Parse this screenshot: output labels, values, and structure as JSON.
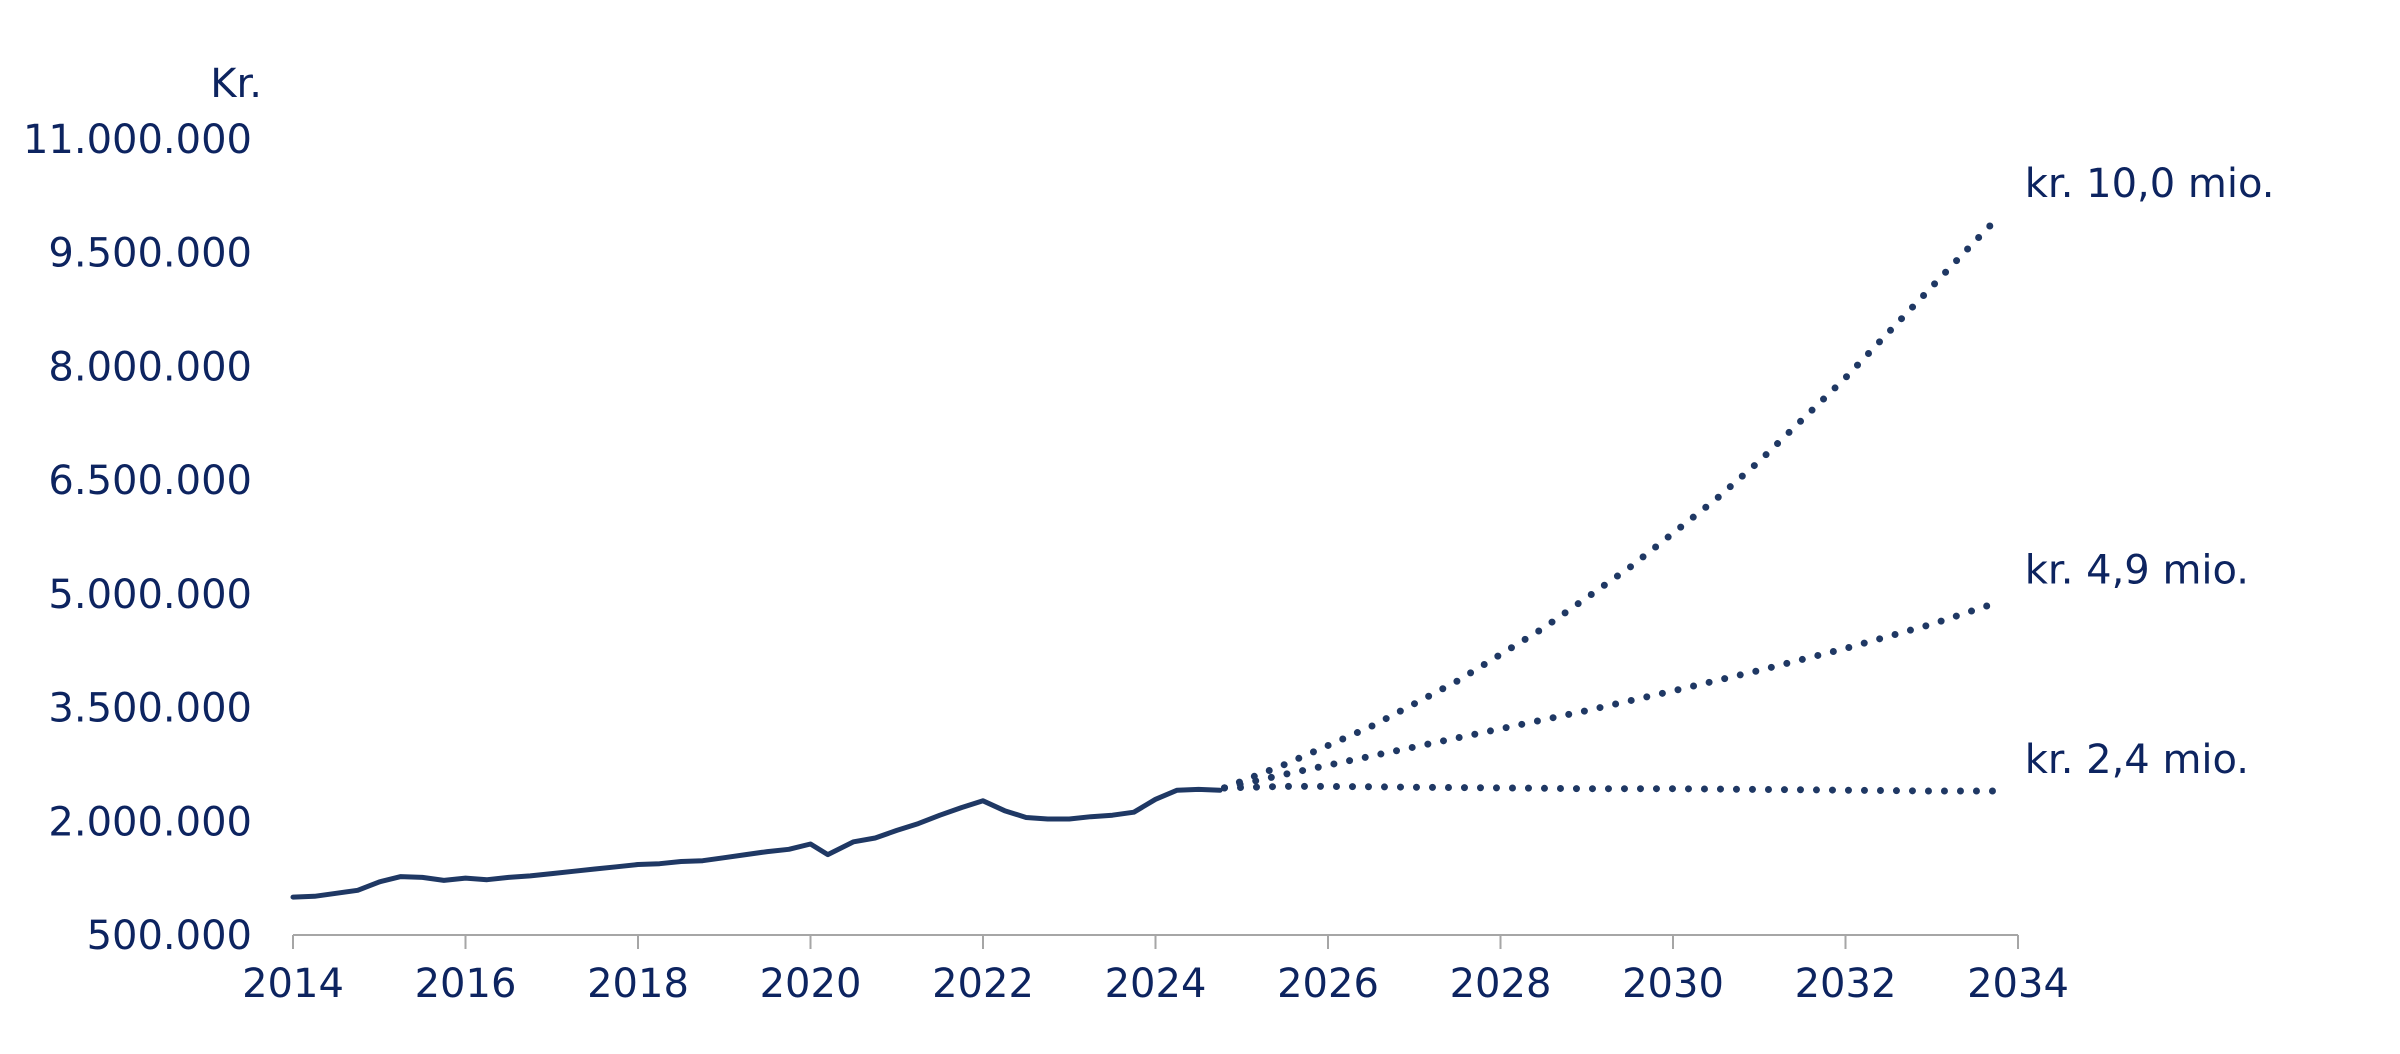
{
  "chart_data": {
    "type": "line",
    "y_unit_label": "Kr.",
    "ylim": [
      500000,
      11000000
    ],
    "xlim": [
      2014,
      2034
    ],
    "y_ticks": [
      500000,
      2000000,
      3500000,
      5000000,
      6500000,
      8000000,
      9500000,
      11000000
    ],
    "y_tick_labels": [
      "500.000",
      "2.000.000",
      "3.500.000",
      "5.000.000",
      "6.500.000",
      "8.000.000",
      "9.500.000",
      "11.000.000"
    ],
    "x_ticks": [
      2014,
      2016,
      2018,
      2020,
      2022,
      2024,
      2026,
      2028,
      2030,
      2032,
      2034
    ],
    "x_tick_labels": [
      "2014",
      "2016",
      "2018",
      "2020",
      "2022",
      "2024",
      "2026",
      "2028",
      "2030",
      "2032",
      "2034"
    ],
    "grid": false,
    "colors": {
      "series": "#1f3864",
      "text": "#0d2460",
      "axis": "#a6a6a6"
    },
    "historical": {
      "style": "solid",
      "x": [
        2014.0,
        2014.25,
        2014.5,
        2014.75,
        2015.0,
        2015.25,
        2015.5,
        2015.75,
        2016.0,
        2016.25,
        2016.5,
        2016.75,
        2017.0,
        2017.25,
        2017.5,
        2017.75,
        2018.0,
        2018.25,
        2018.5,
        2018.75,
        2019.0,
        2019.25,
        2019.5,
        2019.75,
        2020.0,
        2020.2,
        2020.5,
        2020.75,
        2021.0,
        2021.25,
        2021.5,
        2021.75,
        2022.0,
        2022.25,
        2022.5,
        2022.75,
        2023.0,
        2023.25,
        2023.5,
        2023.75,
        2024.0,
        2024.25,
        2024.5,
        2024.75
      ],
      "y": [
        1000000,
        1010000,
        1050000,
        1090000,
        1200000,
        1270000,
        1260000,
        1220000,
        1250000,
        1230000,
        1260000,
        1280000,
        1310000,
        1340000,
        1370000,
        1400000,
        1430000,
        1440000,
        1470000,
        1480000,
        1520000,
        1560000,
        1600000,
        1630000,
        1700000,
        1560000,
        1730000,
        1780000,
        1880000,
        1970000,
        2080000,
        2180000,
        2270000,
        2140000,
        2050000,
        2030000,
        2030000,
        2060000,
        2080000,
        2120000,
        2290000,
        2410000,
        2420000,
        2410000
      ]
    },
    "scenarios": [
      {
        "style": "dotted",
        "label": "kr. 10,0 mio.",
        "x": [
          2024.8,
          2025.5,
          2026.0,
          2026.5,
          2027.0,
          2027.5,
          2028.0,
          2028.5,
          2029.0,
          2029.5,
          2030.0,
          2030.5,
          2031.0,
          2031.5,
          2032.0,
          2032.5,
          2033.0,
          2033.5,
          2033.8
        ],
        "y": [
          2440000,
          2750000,
          3000000,
          3250000,
          3550000,
          3850000,
          4200000,
          4550000,
          4950000,
          5350000,
          5800000,
          6250000,
          6750000,
          7300000,
          7850000,
          8450000,
          9050000,
          9650000,
          10000000
        ]
      },
      {
        "style": "dotted",
        "label": "kr. 4,9 mio.",
        "x": [
          2024.8,
          2025.5,
          2026.0,
          2027.0,
          2028.0,
          2029.0,
          2030.0,
          2031.0,
          2032.0,
          2033.0,
          2033.8
        ],
        "y": [
          2440000,
          2620000,
          2740000,
          2980000,
          3220000,
          3460000,
          3720000,
          3990000,
          4280000,
          4600000,
          4900000
        ]
      },
      {
        "style": "dotted",
        "label": "kr. 2,4 mio.",
        "x": [
          2024.8,
          2025.5,
          2026.0,
          2027.0,
          2028.0,
          2029.0,
          2030.0,
          2031.0,
          2032.0,
          2033.0,
          2033.8
        ],
        "y": [
          2440000,
          2460000,
          2460000,
          2450000,
          2440000,
          2430000,
          2430000,
          2420000,
          2410000,
          2400000,
          2400000
        ]
      }
    ]
  }
}
